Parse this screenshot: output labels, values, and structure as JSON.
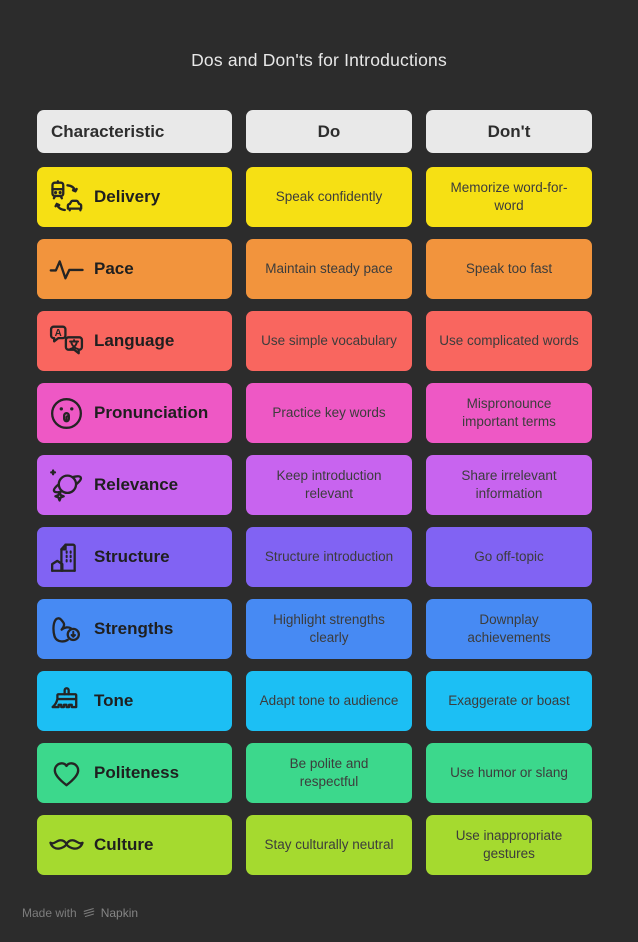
{
  "page": {
    "title": "Dos and Don'ts for Introductions",
    "background_color": "#2c2c2c",
    "header_bg_color": "#e9e9e9",
    "cell_text_color": "#3c3c3c"
  },
  "table": {
    "headers": {
      "characteristic": "Characteristic",
      "do": "Do",
      "dont": "Don't"
    },
    "rows": [
      {
        "characteristic": "Delivery",
        "icon": "transport-transfer-icon",
        "color": "#f6e014",
        "do": "Speak confidently",
        "dont": "Memorize word-for-word"
      },
      {
        "characteristic": "Pace",
        "icon": "pulse-icon",
        "color": "#f2943d",
        "do": "Maintain steady pace",
        "dont": "Speak too fast"
      },
      {
        "characteristic": "Language",
        "icon": "translate-icon",
        "color": "#f9665f",
        "do": "Use simple vocabulary",
        "dont": "Use complicated words"
      },
      {
        "characteristic": "Pronunciation",
        "icon": "pronunciation-face-icon",
        "color": "#ee58c5",
        "do": "Practice key words",
        "dont": "Mispronounce important terms"
      },
      {
        "characteristic": "Relevance",
        "icon": "saturn-icon",
        "color": "#c864ef",
        "do": "Keep introduction relevant",
        "dont": "Share irrelevant information"
      },
      {
        "characteristic": "Structure",
        "icon": "buildings-icon",
        "color": "#8163f3",
        "do": "Structure introduction",
        "dont": "Go off-topic"
      },
      {
        "characteristic": "Strengths",
        "icon": "bicep-icon",
        "color": "#478af3",
        "do": "Highlight strengths clearly",
        "dont": "Downplay achievements"
      },
      {
        "characteristic": "Tone",
        "icon": "paintbrush-icon",
        "color": "#1cbff4",
        "do": "Adapt tone to audience",
        "dont": "Exaggerate or boast"
      },
      {
        "characteristic": "Politeness",
        "icon": "heart-icon",
        "color": "#3cd88c",
        "do": "Be polite and respectful",
        "dont": "Use humor or slang"
      },
      {
        "characteristic": "Culture",
        "icon": "mustache-icon",
        "color": "#a5da2f",
        "do": "Stay culturally neutral",
        "dont": "Use inappropriate gestures"
      }
    ]
  },
  "footer": {
    "made_with": "Made with",
    "brand": "Napkin",
    "logo_icon": "napkin-logo-icon"
  }
}
